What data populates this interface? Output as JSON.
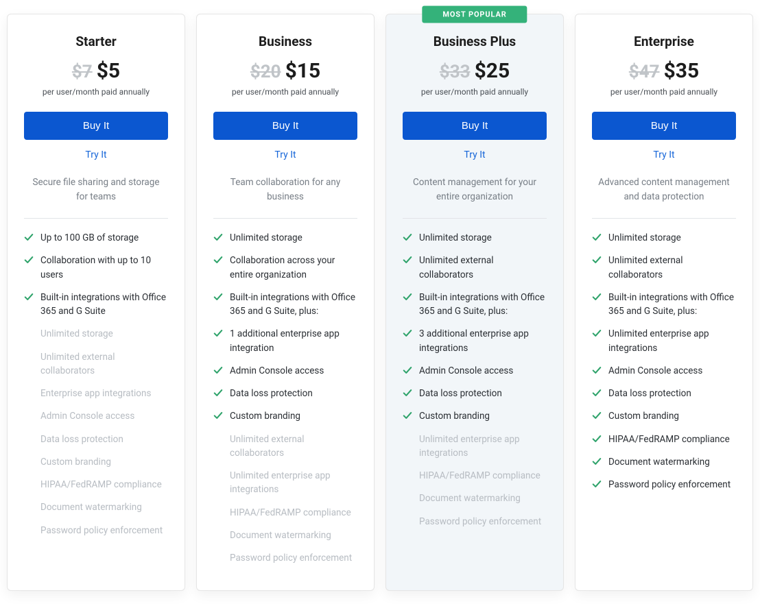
{
  "colors": {
    "accent_button_bg": "#0b57d0",
    "accent_button_text": "#ffffff",
    "link_color": "#1565d8",
    "popular_badge_bg": "#34b27a",
    "check_color": "#2fa36b",
    "highlight_card_bg": "#f2f6f9",
    "muted_text": "#b7bcc2",
    "title_text": "#1c1c1c",
    "desc_text": "#777e86"
  },
  "common": {
    "billing_note": "per user/month paid annually",
    "buy_label": "Buy It",
    "try_label": "Try It",
    "popular_label": "MOST POPULAR"
  },
  "plans": [
    {
      "id": "starter",
      "name": "Starter",
      "old_price": "$7",
      "price": "$5",
      "description": "Secure file sharing and storage for teams",
      "highlight": false,
      "popular": false,
      "features": [
        {
          "text": "Up to 100 GB of storage",
          "included": true
        },
        {
          "text": "Collaboration with up to 10 users",
          "included": true
        },
        {
          "text": "Built-in integrations with Office 365 and G Suite",
          "included": true
        },
        {
          "text": "Unlimited storage",
          "included": false
        },
        {
          "text": "Unlimited external collaborators",
          "included": false
        },
        {
          "text": "Enterprise app integrations",
          "included": false
        },
        {
          "text": "Admin Console access",
          "included": false
        },
        {
          "text": "Data loss protection",
          "included": false
        },
        {
          "text": "Custom branding",
          "included": false
        },
        {
          "text": "HIPAA/FedRAMP compliance",
          "included": false
        },
        {
          "text": "Document watermarking",
          "included": false
        },
        {
          "text": "Password policy enforcement",
          "included": false
        }
      ]
    },
    {
      "id": "business",
      "name": "Business",
      "old_price": "$20",
      "price": "$15",
      "description": "Team collaboration for any business",
      "highlight": false,
      "popular": false,
      "features": [
        {
          "text": "Unlimited storage",
          "included": true
        },
        {
          "text": "Collaboration across your entire organization",
          "included": true
        },
        {
          "text": "Built-in integrations with Office 365 and G Suite, plus:",
          "included": true
        },
        {
          "text": "1 additional enterprise app integration",
          "included": true
        },
        {
          "text": "Admin Console access",
          "included": true
        },
        {
          "text": "Data loss protection",
          "included": true
        },
        {
          "text": "Custom branding",
          "included": true
        },
        {
          "text": "Unlimited external collaborators",
          "included": false
        },
        {
          "text": "Unlimited enterprise app integrations",
          "included": false
        },
        {
          "text": "HIPAA/FedRAMP compliance",
          "included": false
        },
        {
          "text": "Document watermarking",
          "included": false
        },
        {
          "text": "Password policy enforcement",
          "included": false
        }
      ]
    },
    {
      "id": "business-plus",
      "name": "Business Plus",
      "old_price": "$33",
      "price": "$25",
      "description": "Content management for your entire organization",
      "highlight": true,
      "popular": true,
      "features": [
        {
          "text": "Unlimited storage",
          "included": true
        },
        {
          "text": "Unlimited external collaborators",
          "included": true
        },
        {
          "text": "Built-in integrations with Office 365 and G Suite, plus:",
          "included": true
        },
        {
          "text": "3 additional enterprise app integrations",
          "included": true
        },
        {
          "text": "Admin Console access",
          "included": true
        },
        {
          "text": "Data loss protection",
          "included": true
        },
        {
          "text": "Custom branding",
          "included": true
        },
        {
          "text": "Unlimited enterprise app integrations",
          "included": false
        },
        {
          "text": "HIPAA/FedRAMP compliance",
          "included": false
        },
        {
          "text": "Document watermarking",
          "included": false
        },
        {
          "text": "Password policy enforcement",
          "included": false
        }
      ]
    },
    {
      "id": "enterprise",
      "name": "Enterprise",
      "old_price": "$47",
      "price": "$35",
      "description": "Advanced content management and data protection",
      "highlight": false,
      "popular": false,
      "features": [
        {
          "text": "Unlimited storage",
          "included": true
        },
        {
          "text": "Unlimited external collaborators",
          "included": true
        },
        {
          "text": "Built-in integrations with Office 365 and G Suite, plus:",
          "included": true
        },
        {
          "text": "Unlimited enterprise app integrations",
          "included": true
        },
        {
          "text": "Admin Console access",
          "included": true
        },
        {
          "text": "Data loss protection",
          "included": true
        },
        {
          "text": "Custom branding",
          "included": true
        },
        {
          "text": "HIPAA/FedRAMP compliance",
          "included": true
        },
        {
          "text": "Document watermarking",
          "included": true
        },
        {
          "text": "Password policy enforcement",
          "included": true
        }
      ]
    }
  ]
}
